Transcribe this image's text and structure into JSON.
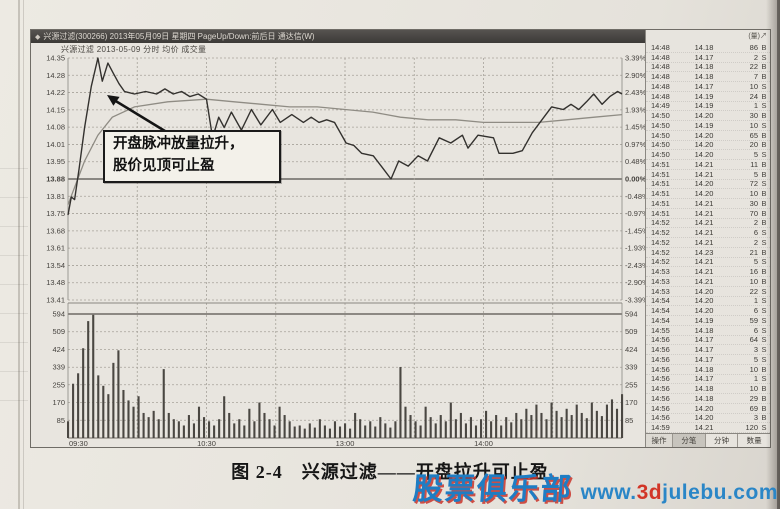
{
  "window": {
    "app_icon": "◆",
    "title": "兴源过滤(300266) 2013年05月09日 星期四 PageUp/Down:前后日 通达信(W)",
    "info_line": "兴源过滤  2013-05-09 分时  均价  成交量"
  },
  "annotation": {
    "line1": "开盘脉冲放量拉升，",
    "line2": "股价见顶可止盈"
  },
  "chart_data": {
    "type": "line",
    "title": "兴源过滤 2013-05-09 分时走势",
    "prev_close": 13.88,
    "price_range": [
      13.41,
      14.35
    ],
    "price_axis_labels": [
      "14.35",
      "14.28",
      "14.22",
      "14.15",
      "14.08",
      "14.01",
      "13.95",
      "13.88",
      "13.81",
      "13.75",
      "13.68",
      "13.61",
      "13.54",
      "13.48",
      "13.41"
    ],
    "pct_axis_labels": [
      "3.39%",
      "2.90%",
      "2.43%",
      "1.93%",
      "1.45%",
      "0.97%",
      "0.48%",
      "0.00%",
      "-0.48%",
      "-0.97%",
      "-1.45%",
      "-1.93%",
      "-2.43%",
      "-2.90%",
      "-3.39%"
    ],
    "time_labels": [
      {
        "label": "09:30",
        "f": 0.0
      },
      {
        "label": "10:30",
        "f": 0.25
      },
      {
        "label": "13:00",
        "f": 0.5
      },
      {
        "label": "14:00",
        "f": 0.75
      }
    ],
    "grid": true,
    "legend_position": "none",
    "price_line": [
      [
        0.0,
        13.74
      ],
      [
        0.006,
        13.81
      ],
      [
        0.012,
        13.8
      ],
      [
        0.02,
        13.92
      ],
      [
        0.03,
        14.08
      ],
      [
        0.042,
        14.24
      ],
      [
        0.054,
        14.35
      ],
      [
        0.062,
        14.26
      ],
      [
        0.072,
        14.33
      ],
      [
        0.082,
        14.29
      ],
      [
        0.092,
        14.25
      ],
      [
        0.102,
        14.22
      ],
      [
        0.12,
        14.21
      ],
      [
        0.14,
        14.22
      ],
      [
        0.16,
        14.21
      ],
      [
        0.175,
        14.23
      ],
      [
        0.19,
        14.21
      ],
      [
        0.205,
        14.22
      ],
      [
        0.22,
        14.2
      ],
      [
        0.235,
        14.21
      ],
      [
        0.25,
        14.19
      ],
      [
        0.261,
        14.04
      ],
      [
        0.272,
        14.12
      ],
      [
        0.282,
        14.08
      ],
      [
        0.295,
        14.14
      ],
      [
        0.313,
        14.07
      ],
      [
        0.331,
        14.15
      ],
      [
        0.348,
        14.09
      ],
      [
        0.369,
        14.15
      ],
      [
        0.383,
        14.1
      ],
      [
        0.404,
        14.13
      ],
      [
        0.425,
        14.1
      ],
      [
        0.439,
        14.12
      ],
      [
        0.453,
        14.1
      ],
      [
        0.467,
        14.11
      ],
      [
        0.481,
        14.1
      ],
      [
        0.502,
        14.02
      ],
      [
        0.516,
        14.01
      ],
      [
        0.53,
        13.98
      ],
      [
        0.551,
        13.97
      ],
      [
        0.569,
        13.92
      ],
      [
        0.583,
        13.88
      ],
      [
        0.597,
        13.95
      ],
      [
        0.614,
        13.93
      ],
      [
        0.632,
        13.97
      ],
      [
        0.649,
        13.95
      ],
      [
        0.67,
        14.04
      ],
      [
        0.691,
        14.02
      ],
      [
        0.712,
        14.05
      ],
      [
        0.722,
        14.0
      ],
      [
        0.74,
        14.05
      ],
      [
        0.768,
        14.04
      ],
      [
        0.778,
        13.98
      ],
      [
        0.803,
        13.98
      ],
      [
        0.82,
        13.99
      ],
      [
        0.838,
        14.06
      ],
      [
        0.859,
        14.12
      ],
      [
        0.873,
        14.16
      ],
      [
        0.894,
        14.15
      ],
      [
        0.908,
        14.17
      ],
      [
        0.922,
        14.15
      ],
      [
        0.936,
        14.18
      ],
      [
        0.949,
        14.21
      ],
      [
        0.964,
        14.17
      ],
      [
        0.978,
        14.2
      ],
      [
        0.992,
        14.22
      ],
      [
        1.0,
        14.21
      ]
    ],
    "avg_line": [
      [
        0.0,
        13.78
      ],
      [
        0.03,
        13.95
      ],
      [
        0.054,
        14.05
      ],
      [
        0.08,
        14.12
      ],
      [
        0.12,
        14.16
      ],
      [
        0.18,
        14.18
      ],
      [
        0.25,
        14.19
      ],
      [
        0.3,
        14.18
      ],
      [
        0.35,
        14.17
      ],
      [
        0.4,
        14.16
      ],
      [
        0.45,
        14.16
      ],
      [
        0.5,
        14.15
      ],
      [
        0.55,
        14.14
      ],
      [
        0.6,
        14.12
      ],
      [
        0.65,
        14.11
      ],
      [
        0.7,
        14.11
      ],
      [
        0.75,
        14.1
      ],
      [
        0.8,
        14.1
      ],
      [
        0.85,
        14.1
      ],
      [
        0.9,
        14.11
      ],
      [
        0.95,
        14.12
      ],
      [
        1.0,
        14.13
      ]
    ],
    "volume_axis_labels": [
      "594",
      "509",
      "424",
      "339",
      "255",
      "170",
      "85"
    ],
    "volume_max": 594,
    "volume_bars": [
      80,
      260,
      310,
      430,
      560,
      590,
      300,
      250,
      210,
      360,
      420,
      230,
      180,
      150,
      200,
      120,
      100,
      130,
      90,
      330,
      120,
      90,
      80,
      60,
      110,
      70,
      150,
      100,
      80,
      60,
      90,
      200,
      120,
      70,
      90,
      60,
      140,
      80,
      170,
      120,
      90,
      60,
      150,
      110,
      80,
      55,
      60,
      45,
      70,
      50,
      90,
      60,
      45,
      80,
      55,
      70,
      45,
      120,
      90,
      60,
      80,
      55,
      100,
      70,
      50,
      80,
      340,
      150,
      110,
      80,
      60,
      150,
      100,
      70,
      110,
      80,
      170,
      90,
      120,
      70,
      100,
      60,
      90,
      130,
      80,
      110,
      60,
      100,
      75,
      120,
      90,
      140,
      110,
      160,
      120,
      90,
      170,
      130,
      100,
      140,
      110,
      160,
      120,
      95,
      170,
      130,
      105,
      160,
      185,
      140,
      210
    ]
  },
  "tick_panel": {
    "header": "(量)↗",
    "rows": [
      {
        "t": "14:48",
        "p": "14.18",
        "v": "86",
        "side": "B"
      },
      {
        "t": "14:48",
        "p": "14.17",
        "v": "2",
        "side": "S"
      },
      {
        "t": "14:48",
        "p": "14.18",
        "v": "22",
        "side": "B"
      },
      {
        "t": "14:48",
        "p": "14.18",
        "v": "7",
        "side": "B"
      },
      {
        "t": "14:48",
        "p": "14.17",
        "v": "10",
        "side": "S"
      },
      {
        "t": "14:48",
        "p": "14.19",
        "v": "24",
        "side": "B"
      },
      {
        "t": "14:49",
        "p": "14.19",
        "v": "1",
        "side": "S"
      },
      {
        "t": "14:50",
        "p": "14.20",
        "v": "30",
        "side": "B"
      },
      {
        "t": "14:50",
        "p": "14.19",
        "v": "10",
        "side": "S"
      },
      {
        "t": "14:50",
        "p": "14.20",
        "v": "65",
        "side": "B"
      },
      {
        "t": "14:50",
        "p": "14.20",
        "v": "20",
        "side": "B"
      },
      {
        "t": "14:50",
        "p": "14.20",
        "v": "5",
        "side": "S"
      },
      {
        "t": "14:51",
        "p": "14.21",
        "v": "11",
        "side": "B"
      },
      {
        "t": "14:51",
        "p": "14.21",
        "v": "5",
        "side": "B"
      },
      {
        "t": "14:51",
        "p": "14.20",
        "v": "72",
        "side": "S"
      },
      {
        "t": "14:51",
        "p": "14.20",
        "v": "10",
        "side": "B"
      },
      {
        "t": "14:51",
        "p": "14.21",
        "v": "30",
        "side": "B"
      },
      {
        "t": "14:51",
        "p": "14.21",
        "v": "70",
        "side": "B"
      },
      {
        "t": "14:52",
        "p": "14.21",
        "v": "2",
        "side": "B"
      },
      {
        "t": "14:52",
        "p": "14.21",
        "v": "6",
        "side": "S"
      },
      {
        "t": "14:52",
        "p": "14.21",
        "v": "2",
        "side": "S"
      },
      {
        "t": "14:52",
        "p": "14.23",
        "v": "21",
        "side": "B"
      },
      {
        "t": "14:52",
        "p": "14.21",
        "v": "5",
        "side": "S"
      },
      {
        "t": "14:53",
        "p": "14.21",
        "v": "16",
        "side": "B"
      },
      {
        "t": "14:53",
        "p": "14.21",
        "v": "10",
        "side": "B"
      },
      {
        "t": "14:53",
        "p": "14.20",
        "v": "22",
        "side": "S"
      },
      {
        "t": "14:54",
        "p": "14.20",
        "v": "1",
        "side": "S"
      },
      {
        "t": "14:54",
        "p": "14.20",
        "v": "6",
        "side": "S"
      },
      {
        "t": "14:54",
        "p": "14.19",
        "v": "59",
        "side": "S"
      },
      {
        "t": "14:55",
        "p": "14.18",
        "v": "6",
        "side": "S"
      },
      {
        "t": "14:56",
        "p": "14.17",
        "v": "64",
        "side": "S"
      },
      {
        "t": "14:56",
        "p": "14.17",
        "v": "3",
        "side": "S"
      },
      {
        "t": "14:56",
        "p": "14.17",
        "v": "5",
        "side": "S"
      },
      {
        "t": "14:56",
        "p": "14.18",
        "v": "10",
        "side": "B"
      },
      {
        "t": "14:56",
        "p": "14.17",
        "v": "1",
        "side": "S"
      },
      {
        "t": "14:56",
        "p": "14.18",
        "v": "10",
        "side": "B"
      },
      {
        "t": "14:56",
        "p": "14.18",
        "v": "29",
        "side": "B"
      },
      {
        "t": "14:56",
        "p": "14.20",
        "v": "69",
        "side": "B"
      },
      {
        "t": "14:56",
        "p": "14.20",
        "v": "3",
        "side": "B"
      },
      {
        "t": "14:59",
        "p": "14.21",
        "v": "120",
        "side": "S"
      }
    ],
    "footer_tabs": [
      "操作",
      "分笔",
      "分钟",
      "数量"
    ],
    "active_tab": "分笔"
  },
  "caption": "图 2-4　兴源过滤——开盘拉升可止盈",
  "watermark": {
    "brand": "股票俱乐部",
    "url_www": "www.",
    "url_3d": "3d",
    "url_rest": "julebu.com"
  },
  "colors": {
    "brand_blue": "#1e7dc4",
    "brand_red": "#d23527",
    "paper": "#e9e6df",
    "ink": "#33312e"
  }
}
